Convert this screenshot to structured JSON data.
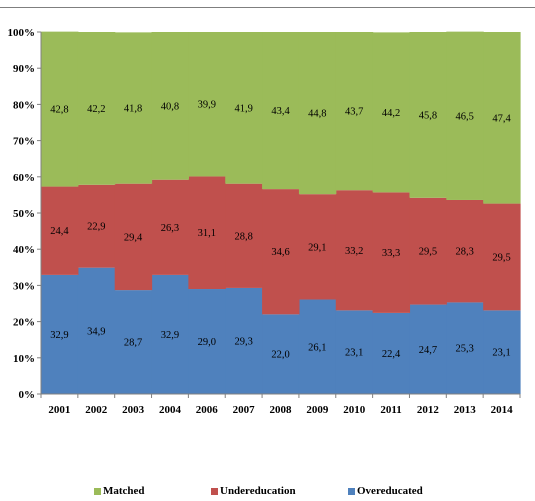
{
  "chart_data": {
    "type": "bar",
    "stacked": true,
    "percent": true,
    "categories": [
      "2001",
      "2002",
      "2003",
      "2004",
      "2006",
      "2007",
      "2008",
      "2009",
      "2010",
      "2011",
      "2012",
      "2013",
      "2014"
    ],
    "series": [
      {
        "name": "Overeducated",
        "color": "#4f81bd",
        "values": [
          32.9,
          34.9,
          28.7,
          32.9,
          29.0,
          29.3,
          22.0,
          26.1,
          23.1,
          22.4,
          24.7,
          25.3,
          23.1
        ],
        "labels": [
          "32,9",
          "34,9",
          "28,7",
          "32,9",
          "29,0",
          "29,3",
          "22,0",
          "26,1",
          "23,1",
          "22,4",
          "24,7",
          "25,3",
          "23,1"
        ]
      },
      {
        "name": "Undereducation",
        "color": "#c0504d",
        "values": [
          24.4,
          22.9,
          29.4,
          26.3,
          31.1,
          28.8,
          34.6,
          29.1,
          33.2,
          33.3,
          29.5,
          28.3,
          29.5
        ],
        "labels": [
          "24,4",
          "22,9",
          "29,4",
          "26,3",
          "31,1",
          "28,8",
          "34,6",
          "29,1",
          "33,2",
          "33,3",
          "29,5",
          "28,3",
          "29,5"
        ]
      },
      {
        "name": "Matched",
        "color": "#9bbb59",
        "values": [
          42.8,
          42.2,
          41.8,
          40.8,
          39.9,
          41.9,
          43.4,
          44.8,
          43.7,
          44.2,
          45.8,
          46.5,
          47.4
        ],
        "labels": [
          "42,8",
          "42,2",
          "41,8",
          "40,8",
          "39,9",
          "41,9",
          "43,4",
          "44,8",
          "43,7",
          "44,2",
          "45,8",
          "46,5",
          "47,4"
        ]
      }
    ],
    "y_ticks": [
      "0%",
      "10%",
      "20%",
      "30%",
      "40%",
      "50%",
      "60%",
      "70%",
      "80%",
      "90%",
      "100%"
    ],
    "ylim": [
      0,
      100
    ],
    "grid": false,
    "legend_position": "bottom",
    "legend": [
      "Matched",
      "Undereducation",
      "Overeducated"
    ]
  }
}
